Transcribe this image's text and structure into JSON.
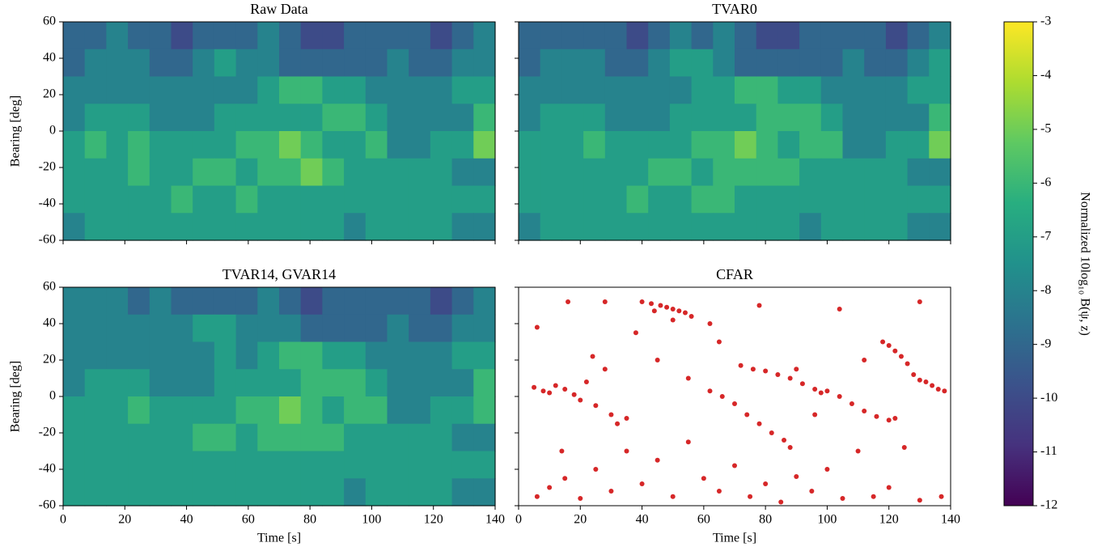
{
  "chart_data": [
    {
      "type": "heatmap",
      "title": "Raw Data",
      "ylabel": "Bearing [deg]",
      "xlim": [
        0,
        140
      ],
      "ylim": [
        -60,
        60
      ],
      "xticks": [
        0,
        20,
        40,
        60,
        80,
        100,
        120,
        140
      ],
      "yticks": [
        -60,
        -40,
        -20,
        0,
        20,
        40,
        60
      ],
      "xticklabels": false,
      "yticklabels": true,
      "z": [
        [
          -9,
          -9,
          -8,
          -9,
          -9,
          -10,
          -9,
          -9,
          -9,
          -8,
          -9,
          -10,
          -10,
          -9,
          -9,
          -9,
          -9,
          -10,
          -9,
          -8
        ],
        [
          -9,
          -8,
          -8,
          -8,
          -9,
          -9,
          -8,
          -7,
          -8,
          -8,
          -9,
          -9,
          -9,
          -9,
          -9,
          -8,
          -9,
          -9,
          -8,
          -8
        ],
        [
          -8,
          -8,
          -8,
          -8,
          -8,
          -8,
          -8,
          -8,
          -8,
          -7,
          -6,
          -6,
          -7,
          -7,
          -8,
          -8,
          -8,
          -8,
          -7,
          -7
        ],
        [
          -8,
          -7,
          -7,
          -7,
          -8,
          -8,
          -8,
          -7,
          -7,
          -7,
          -7,
          -7,
          -6,
          -6,
          -7,
          -8,
          -8,
          -8,
          -8,
          -6
        ],
        [
          -7,
          -6,
          -7,
          -6,
          -7,
          -7,
          -7,
          -7,
          -6,
          -6,
          -5,
          -6,
          -7,
          -7,
          -6,
          -8,
          -8,
          -7,
          -7,
          -5
        ],
        [
          -7,
          -7,
          -7,
          -6,
          -7,
          -7,
          -6,
          -6,
          -7,
          -6,
          -6,
          -5,
          -6,
          -7,
          -7,
          -7,
          -7,
          -7,
          -8,
          -8
        ],
        [
          -7,
          -7,
          -7,
          -7,
          -7,
          -6,
          -7,
          -7,
          -6,
          -7,
          -7,
          -7,
          -7,
          -7,
          -7,
          -7,
          -7,
          -7,
          -7,
          -7
        ],
        [
          -8,
          -7,
          -7,
          -7,
          -7,
          -7,
          -7,
          -7,
          -7,
          -7,
          -7,
          -7,
          -7,
          -8,
          -7,
          -7,
          -7,
          -7,
          -8,
          -8
        ]
      ]
    },
    {
      "type": "heatmap",
      "title": "TVAR0",
      "xlim": [
        0,
        140
      ],
      "ylim": [
        -60,
        60
      ],
      "xticks": [
        0,
        20,
        40,
        60,
        80,
        100,
        120,
        140
      ],
      "yticks": [
        -60,
        -40,
        -20,
        0,
        20,
        40,
        60
      ],
      "xticklabels": false,
      "yticklabels": false,
      "z": [
        [
          -9,
          -9,
          -9,
          -9,
          -9,
          -10,
          -9,
          -8,
          -9,
          -8,
          -9,
          -10,
          -10,
          -9,
          -9,
          -9,
          -9,
          -10,
          -9,
          -8
        ],
        [
          -9,
          -8,
          -8,
          -8,
          -9,
          -9,
          -8,
          -7,
          -7,
          -8,
          -9,
          -9,
          -9,
          -9,
          -9,
          -8,
          -9,
          -9,
          -8,
          -7
        ],
        [
          -8,
          -8,
          -8,
          -8,
          -8,
          -8,
          -8,
          -8,
          -7,
          -7,
          -6,
          -6,
          -7,
          -7,
          -8,
          -8,
          -8,
          -8,
          -7,
          -7
        ],
        [
          -8,
          -7,
          -7,
          -7,
          -8,
          -8,
          -8,
          -7,
          -7,
          -7,
          -7,
          -6,
          -6,
          -6,
          -7,
          -8,
          -8,
          -8,
          -8,
          -6
        ],
        [
          -7,
          -7,
          -7,
          -6,
          -7,
          -7,
          -7,
          -7,
          -6,
          -6,
          -5,
          -6,
          -7,
          -6,
          -6,
          -8,
          -8,
          -7,
          -7,
          -5
        ],
        [
          -7,
          -7,
          -7,
          -7,
          -7,
          -7,
          -6,
          -6,
          -7,
          -6,
          -6,
          -6,
          -6,
          -7,
          -7,
          -7,
          -7,
          -7,
          -8,
          -8
        ],
        [
          -7,
          -7,
          -7,
          -7,
          -7,
          -6,
          -7,
          -7,
          -6,
          -6,
          -7,
          -7,
          -7,
          -7,
          -7,
          -7,
          -7,
          -7,
          -7,
          -7
        ],
        [
          -8,
          -7,
          -7,
          -7,
          -7,
          -7,
          -7,
          -7,
          -7,
          -7,
          -7,
          -7,
          -7,
          -8,
          -7,
          -7,
          -7,
          -7,
          -8,
          -8
        ]
      ]
    },
    {
      "type": "heatmap",
      "title": "TVAR14, GVAR14",
      "xlabel": "Time [s]",
      "ylabel": "Bearing [deg]",
      "xlim": [
        0,
        140
      ],
      "ylim": [
        -60,
        60
      ],
      "xticks": [
        0,
        20,
        40,
        60,
        80,
        100,
        120,
        140
      ],
      "yticks": [
        -60,
        -40,
        -20,
        0,
        20,
        40,
        60
      ],
      "xticklabels": true,
      "yticklabels": true,
      "z": [
        [
          -8,
          -8,
          -8,
          -9,
          -8,
          -9,
          -9,
          -9,
          -9,
          -8,
          -9,
          -10,
          -9,
          -9,
          -9,
          -9,
          -9,
          -10,
          -9,
          -8
        ],
        [
          -8,
          -8,
          -8,
          -8,
          -8,
          -8,
          -7,
          -7,
          -8,
          -8,
          -8,
          -9,
          -9,
          -9,
          -9,
          -8,
          -9,
          -9,
          -8,
          -8
        ],
        [
          -8,
          -8,
          -8,
          -8,
          -8,
          -8,
          -8,
          -7,
          -8,
          -7,
          -6,
          -6,
          -7,
          -7,
          -8,
          -8,
          -8,
          -8,
          -7,
          -7
        ],
        [
          -8,
          -7,
          -7,
          -7,
          -8,
          -8,
          -8,
          -7,
          -7,
          -7,
          -7,
          -6,
          -6,
          -6,
          -7,
          -8,
          -8,
          -8,
          -8,
          -6
        ],
        [
          -7,
          -7,
          -7,
          -6,
          -7,
          -7,
          -7,
          -7,
          -6,
          -6,
          -5,
          -6,
          -7,
          -6,
          -6,
          -8,
          -8,
          -7,
          -7,
          -6
        ],
        [
          -7,
          -7,
          -7,
          -7,
          -7,
          -7,
          -6,
          -6,
          -7,
          -6,
          -6,
          -6,
          -6,
          -7,
          -7,
          -7,
          -7,
          -7,
          -8,
          -8
        ],
        [
          -7,
          -7,
          -7,
          -7,
          -7,
          -7,
          -7,
          -7,
          -7,
          -7,
          -7,
          -7,
          -7,
          -7,
          -7,
          -7,
          -7,
          -7,
          -7,
          -7
        ],
        [
          -7,
          -7,
          -7,
          -7,
          -7,
          -7,
          -7,
          -7,
          -7,
          -7,
          -7,
          -7,
          -7,
          -8,
          -7,
          -7,
          -7,
          -7,
          -8,
          -8
        ]
      ]
    },
    {
      "type": "scatter",
      "title": "CFAR",
      "xlabel": "Time [s]",
      "xlim": [
        0,
        140
      ],
      "ylim": [
        -60,
        60
      ],
      "color": "#d62728",
      "xticks": [
        0,
        20,
        40,
        60,
        80,
        100,
        120,
        140
      ],
      "yticks": [
        -60,
        -40,
        -20,
        0,
        20,
        40,
        60
      ],
      "xticklabels": true,
      "yticklabels": false,
      "x": [
        40,
        43,
        46,
        48,
        50,
        52,
        54,
        56,
        44,
        50,
        72,
        76,
        80,
        84,
        88,
        92,
        96,
        98,
        100,
        104,
        108,
        112,
        116,
        120,
        122,
        62,
        66,
        70,
        74,
        78,
        82,
        86,
        88,
        118,
        120,
        122,
        124,
        126,
        128,
        130,
        132,
        134,
        136,
        138,
        5,
        8,
        10,
        12,
        15,
        18,
        20,
        22,
        25,
        30,
        32,
        35,
        28,
        24,
        6,
        10,
        15,
        20,
        25,
        30,
        35,
        40,
        45,
        50,
        55,
        60,
        65,
        70,
        75,
        80,
        85,
        90,
        95,
        100,
        105,
        110,
        115,
        120,
        125,
        130,
        137,
        16,
        28,
        38,
        62,
        78,
        96,
        104,
        112,
        130,
        6,
        14,
        45,
        55,
        65,
        90
      ],
      "y": [
        52,
        51,
        50,
        49,
        48,
        47,
        46,
        44,
        47,
        42,
        17,
        15,
        14,
        12,
        10,
        7,
        4,
        2,
        3,
        0,
        -4,
        -8,
        -11,
        -13,
        -12,
        3,
        0,
        -4,
        -10,
        -15,
        -20,
        -24,
        -28,
        30,
        28,
        25,
        22,
        18,
        12,
        9,
        8,
        6,
        4,
        3,
        5,
        3,
        2,
        6,
        4,
        1,
        -2,
        8,
        -5,
        -10,
        -15,
        -12,
        15,
        22,
        -55,
        -50,
        -45,
        -56,
        -40,
        -52,
        -30,
        -48,
        -35,
        -55,
        -25,
        -45,
        -52,
        -38,
        -55,
        -48,
        -58,
        -44,
        -52,
        -40,
        -56,
        -30,
        -55,
        -50,
        -28,
        -57,
        -55,
        52,
        52,
        35,
        40,
        50,
        -10,
        48,
        20,
        52,
        38,
        -30,
        20,
        10,
        30,
        15
      ]
    }
  ],
  "colorbar": {
    "label": "Normalized 10log₁₀ B(ψ, z)",
    "clim": [
      -12,
      -3
    ],
    "ticks": [
      -12,
      -11,
      -10,
      -9,
      -8,
      -7,
      -6,
      -5,
      -4,
      -3
    ]
  }
}
